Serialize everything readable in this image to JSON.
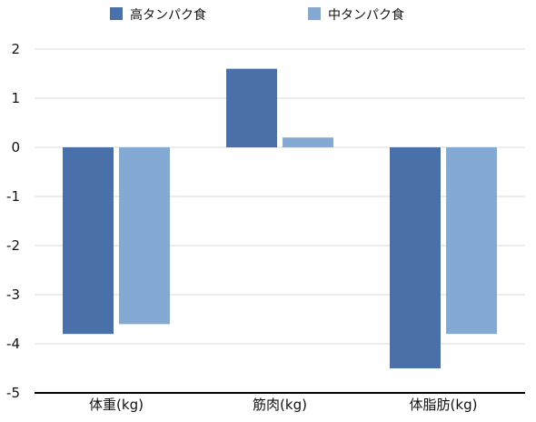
{
  "chart_data": {
    "type": "bar",
    "title": "",
    "xlabel": "",
    "ylabel": "",
    "categories": [
      "体重(kg)",
      "筋肉(kg)",
      "体脂肪(kg)"
    ],
    "series": [
      {
        "name": "高タンパク食",
        "color": "#4a70a9",
        "values": [
          -3.8,
          1.6,
          -4.5
        ]
      },
      {
        "name": "中タンパク食",
        "color": "#84a9d2",
        "values": [
          -3.6,
          0.2,
          -3.8
        ]
      }
    ],
    "ylim": [
      -5,
      2
    ],
    "yticks": [
      2,
      1,
      0,
      -1,
      -2,
      -3,
      -4,
      -5
    ],
    "ytick_labels": [
      "2",
      "1",
      "0",
      "-1",
      "-2",
      "-3",
      "-4",
      "-5"
    ],
    "grid": true,
    "legend": "top"
  }
}
